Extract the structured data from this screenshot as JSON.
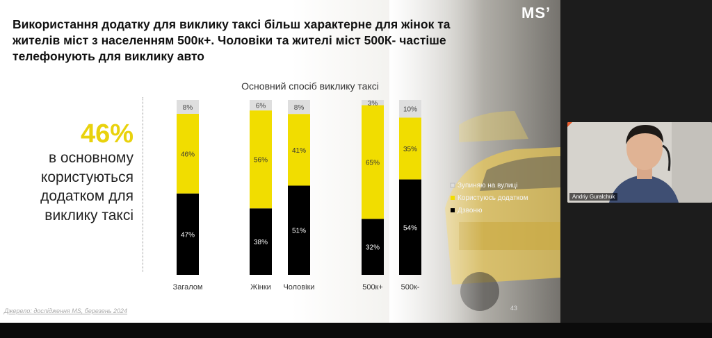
{
  "slide": {
    "headline": "Використання додатку для виклику таксі більш характерне для жінок та жителів міст з населенням 500к+. Чоловіки та жителі  міст 500К- частіше телефонують для виклику авто",
    "logo": "MS’",
    "highlight": {
      "percent": "46%",
      "text": "в основному користуються додатком для виклику таксі"
    },
    "source": "Джерело: дослідження MS, березень 2024",
    "page_number": "43"
  },
  "chart_data": {
    "type": "bar",
    "stacked": true,
    "title": "Основний спосіб виклику таксі",
    "categories": [
      "Загалом",
      "Жінки",
      "Чоловіки",
      "500к+",
      "500к-"
    ],
    "series": [
      {
        "name": "Дзвоню",
        "values": [
          47,
          38,
          51,
          32,
          54
        ],
        "labels": [
          "47%",
          "38%",
          "51%",
          "32%",
          "54%"
        ],
        "color": "#000000",
        "label_color": "#ffffff"
      },
      {
        "name": "Користуюсь додатком",
        "values": [
          46,
          56,
          41,
          65,
          35
        ],
        "labels": [
          "46%",
          "56%",
          "41%",
          "65%",
          "35%"
        ],
        "color": "#f1dd00",
        "label_color": "#333333"
      },
      {
        "name": "Зупиняю на вулиці",
        "values": [
          8,
          6,
          8,
          3,
          10
        ],
        "labels": [
          "8%",
          "6%",
          "8%",
          "3%",
          "10%"
        ],
        "color": "#dedede",
        "label_color": "#444444"
      }
    ],
    "legend": {
      "position": "right",
      "entries": [
        "Зупиняю на вулиці",
        "Користуюсь додатком",
        "Дзвоню"
      ],
      "colors": [
        "#dedede",
        "#f1dd00",
        "#000000"
      ]
    },
    "ylim": [
      0,
      100
    ],
    "grid": false
  },
  "video": {
    "participant_name": "Andriy Guralchuk"
  },
  "colors": {
    "accent_yellow": "#e9d20d",
    "window_bg": "#111111"
  }
}
